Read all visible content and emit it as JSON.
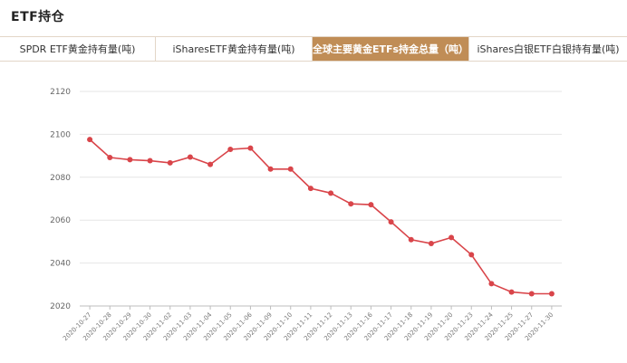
{
  "header": {
    "title": "ETF持仓"
  },
  "tabs": [
    {
      "label": "SPDR ETF黄金持有量(吨)",
      "active": false
    },
    {
      "label": "iSharesETF黄金持有量(吨)",
      "active": false
    },
    {
      "label": "全球主要黄金ETFs持金总量（吨）",
      "active": true
    },
    {
      "label": "iShares白银ETF白银持有量(吨)",
      "active": false
    }
  ],
  "colors": {
    "accent": "#c08d56",
    "line": "#d9454a",
    "grid": "#e6e6e6"
  },
  "chart_data": {
    "type": "line",
    "title": "",
    "xlabel": "",
    "ylabel": "",
    "ylim": [
      2020,
      2120
    ],
    "yticks": [
      2020,
      2040,
      2060,
      2080,
      2100,
      2120
    ],
    "grid": true,
    "categories": [
      "2020-10-27",
      "2020-10-28",
      "2020-10-29",
      "2020-10-30",
      "2020-11-02",
      "2020-11-03",
      "2020-11-04",
      "2020-11-05",
      "2020-11-06",
      "2020-11-09",
      "2020-11-10",
      "2020-11-11",
      "2020-11-12",
      "2020-11-13",
      "2020-11-16",
      "2020-11-17",
      "2020-11-18",
      "2020-11-19",
      "2020-11-20",
      "2020-11-23",
      "2020-11-24",
      "2020-11-25",
      "2020-11-27",
      "2020-11-30"
    ],
    "series": [
      {
        "values": [
          2097.6,
          2089.2,
          2088.2,
          2087.7,
          2086.7,
          2089.4,
          2086.0,
          2093.0,
          2093.6,
          2083.8,
          2083.8,
          2074.8,
          2072.6,
          2067.6,
          2067.2,
          2059.2,
          2050.9,
          2049.1,
          2051.9,
          2043.9,
          2030.4,
          2026.5,
          2025.7,
          2025.7
        ]
      }
    ]
  }
}
